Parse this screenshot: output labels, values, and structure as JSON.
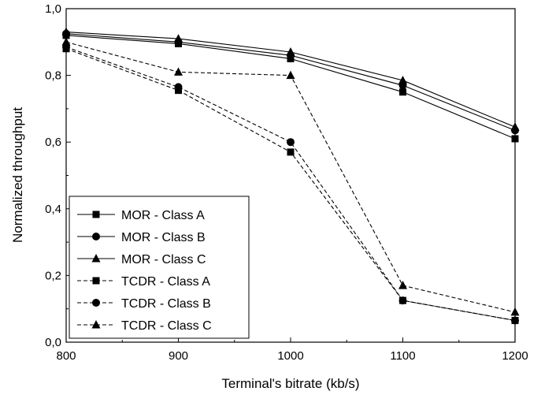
{
  "chart_data": {
    "type": "line",
    "title": "",
    "xlabel": "Terminal's bitrate (kb/s)",
    "ylabel": "Normalized throughput",
    "x": [
      800,
      900,
      1000,
      1100,
      1200
    ],
    "xlim": [
      800,
      1200
    ],
    "ylim": [
      0,
      1
    ],
    "x_ticks": [
      "800",
      "900",
      "1000",
      "1100",
      "1200"
    ],
    "y_ticks": [
      "0,0",
      "0,2",
      "0,4",
      "0,6",
      "0,8",
      "1,0"
    ],
    "grid": false,
    "legend_position": "bottom-left",
    "series": [
      {
        "name": "MOR - Class A",
        "style": "solid",
        "marker": "square",
        "values": [
          0.92,
          0.895,
          0.85,
          0.75,
          0.61
        ]
      },
      {
        "name": "MOR - Class B",
        "style": "solid",
        "marker": "circle",
        "values": [
          0.925,
          0.9,
          0.86,
          0.77,
          0.635
        ]
      },
      {
        "name": "MOR - Class C",
        "style": "solid",
        "marker": "triangle",
        "values": [
          0.93,
          0.91,
          0.87,
          0.785,
          0.645
        ]
      },
      {
        "name": "TCDR - Class A",
        "style": "dashed",
        "marker": "square",
        "values": [
          0.88,
          0.755,
          0.57,
          0.125,
          0.065
        ]
      },
      {
        "name": "TCDR - Class B",
        "style": "dashed",
        "marker": "circle",
        "values": [
          0.885,
          0.765,
          0.6,
          0.125,
          0.065
        ]
      },
      {
        "name": "TCDR - Class C",
        "style": "dashed",
        "marker": "triangle",
        "values": [
          0.9,
          0.81,
          0.8,
          0.17,
          0.09
        ]
      }
    ]
  }
}
